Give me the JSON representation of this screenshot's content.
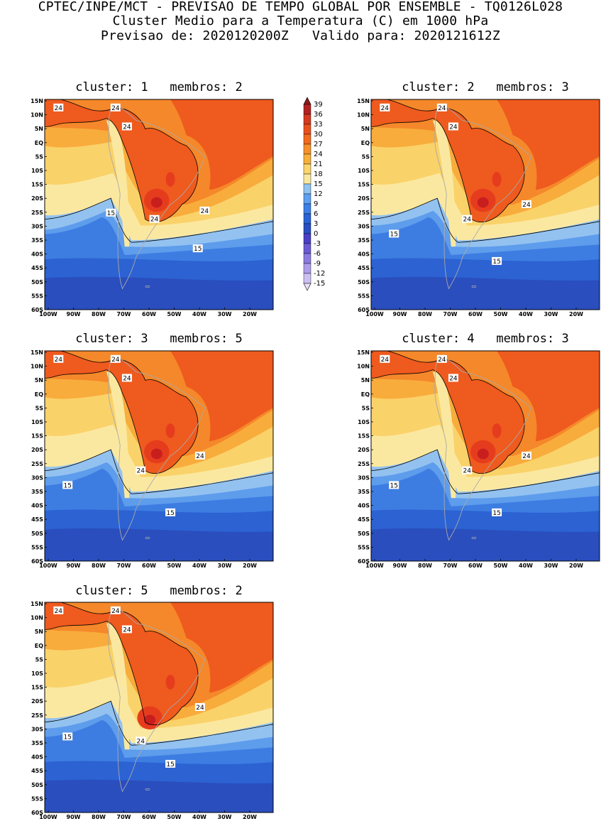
{
  "header": {
    "line1": "CPTEC/INPE/MCT - PREVISAO DE TEMPO GLOBAL POR ENSEMBLE - TQ0126L028",
    "line2": "Cluster Medio para a Temperatura (C) em 1000 hPa",
    "line3": "Previsao de: 2020120200Z   Valido para: 2020121612Z"
  },
  "lat_labels": [
    "15N",
    "10N",
    "5N",
    "EQ",
    "5S",
    "10S",
    "15S",
    "20S",
    "25S",
    "30S",
    "35S",
    "40S",
    "45S",
    "50S",
    "55S",
    "60S"
  ],
  "lon_labels": [
    "100W",
    "90W",
    "80W",
    "70W",
    "60W",
    "50W",
    "40W",
    "30W",
    "20W"
  ],
  "colorbar": {
    "labels": [
      "39",
      "36",
      "33",
      "30",
      "27",
      "24",
      "21",
      "18",
      "15",
      "12",
      "9",
      "6",
      "3",
      "0",
      "-3",
      "-6",
      "-9",
      "-12",
      "-15"
    ],
    "colors": [
      "#8b1a1a",
      "#b22222",
      "#d43a20",
      "#e9501e",
      "#f26a1e",
      "#f7902a",
      "#f8b03a",
      "#fbd56e",
      "#f9e9a0",
      "#8fc3f2",
      "#5d9ff0",
      "#3c7fe6",
      "#2a63d6",
      "#2a4fc4",
      "#4a3fc6",
      "#6b5ad4",
      "#8b7be0",
      "#ab9de9",
      "#ccc0f2",
      "#e9e1fa"
    ]
  },
  "contour_labels": {
    "c24": "24",
    "c15": "15"
  },
  "panels": [
    {
      "title": "cluster: 1   membros: 2",
      "variant": 1
    },
    {
      "title": "cluster: 2   membros: 3",
      "variant": 2
    },
    {
      "title": "cluster: 3   membros: 5",
      "variant": 3
    },
    {
      "title": "cluster: 4   membros: 3",
      "variant": 4
    },
    {
      "title": "cluster: 5   membros: 2",
      "variant": 5
    }
  ]
}
